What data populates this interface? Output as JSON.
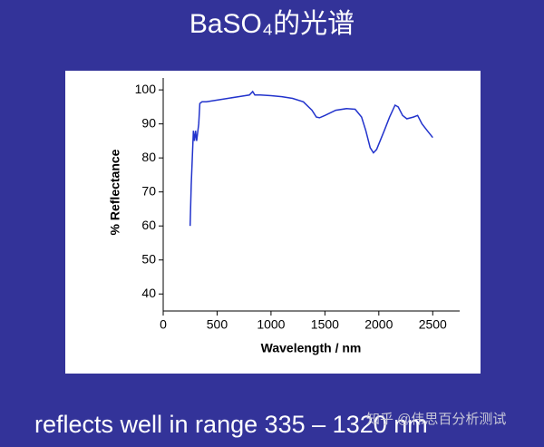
{
  "chart_data": {
    "type": "line",
    "title": "BaSO₄的光谱",
    "xlabel": "Wavelength / nm",
    "ylabel": "% Reflectance",
    "series": [
      {
        "name": "BaSO₄",
        "color": "#2233cc",
        "x": [
          250,
          260,
          270,
          280,
          290,
          300,
          310,
          330,
          340,
          360,
          400,
          500,
          600,
          700,
          800,
          830,
          850,
          900,
          1000,
          1100,
          1200,
          1300,
          1380,
          1420,
          1450,
          1500,
          1600,
          1700,
          1780,
          1840,
          1880,
          1920,
          1950,
          1980,
          2050,
          2100,
          2150,
          2180,
          2220,
          2260,
          2320,
          2360,
          2400,
          2450,
          2500
        ],
        "values": [
          60,
          72,
          80,
          88,
          85,
          88,
          85,
          90,
          96,
          96.5,
          96.5,
          97,
          97.5,
          98,
          98.5,
          99.5,
          98.5,
          98.5,
          98.3,
          98,
          97.5,
          96.5,
          94,
          92,
          91.8,
          92.5,
          94,
          94.5,
          94.3,
          92,
          88,
          83,
          81.5,
          82.5,
          88,
          92,
          95.5,
          95,
          92.5,
          91.5,
          92,
          92.5,
          90,
          88,
          86
        ]
      }
    ],
    "xlim": [
      0,
      2750
    ],
    "xticks": [
      0,
      500,
      1000,
      1500,
      2000,
      2500
    ],
    "ylim": [
      35,
      103.5
    ],
    "yticks": [
      40,
      50,
      60,
      70,
      80,
      90,
      100
    ],
    "grid": false
  },
  "caption": "reflects well in range 335 – 1320 nm",
  "watermark": "知乎 @伟思百分析测试"
}
